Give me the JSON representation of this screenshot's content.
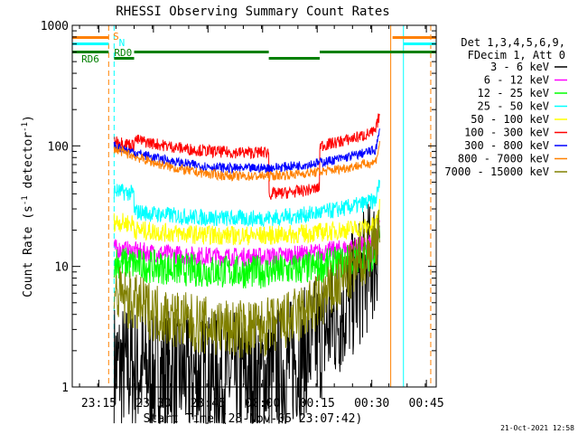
{
  "chart_data": {
    "type": "line",
    "title": "RHESSI Observing Summary Count Rates",
    "xlabel": "Start Time (28-Nov-05 23:07:42)",
    "ylabel_main": "Count Rate (s",
    "ylabel_sup": "-1",
    "ylabel_mid": " detector",
    "ylabel_end": ")",
    "y_scale": "log",
    "ylim": [
      1,
      1000
    ],
    "y_ticks": [
      {
        "value": 1,
        "label": "1"
      },
      {
        "value": 10,
        "label": "10"
      },
      {
        "value": 100,
        "label": "100"
      },
      {
        "value": 1000,
        "label": "1000"
      }
    ],
    "x_unit": "minutes from 23:07:42",
    "xlim": [
      0,
      100
    ],
    "x_ticks": [
      {
        "value": 7.3,
        "label": "23:15"
      },
      {
        "value": 22.3,
        "label": "23:30"
      },
      {
        "value": 37.3,
        "label": "23:45"
      },
      {
        "value": 52.3,
        "label": "00:00"
      },
      {
        "value": 67.3,
        "label": "00:15"
      },
      {
        "value": 82.3,
        "label": "00:30"
      },
      {
        "value": 97.3,
        "label": "00:45"
      }
    ],
    "legend_header": [
      "Det 1,3,4,5,6,9,",
      "FDecim 1, Att 0"
    ],
    "legend_position": "right",
    "series": [
      {
        "name": "3 - 6 keV",
        "color": "#000000",
        "start": 1.5,
        "mid": 1.2,
        "end": 15
      },
      {
        "name": "6 - 12 keV",
        "color": "#ff00ff",
        "start": 14,
        "mid": 12,
        "end": 16
      },
      {
        "name": "12 - 25 keV",
        "color": "#00ff00",
        "start": 11,
        "mid": 9,
        "end": 13
      },
      {
        "name": "25 - 50 keV",
        "color": "#00ffff",
        "start": 30,
        "mid": 25,
        "end": 36
      },
      {
        "name": "50 - 100 keV",
        "color": "#ffff00",
        "start": 21,
        "mid": 18,
        "end": 22
      },
      {
        "name": "100 - 300 keV",
        "color": "#ff0000",
        "start": 125,
        "mid": 88,
        "end": 135
      },
      {
        "name": "300 - 800 keV",
        "color": "#0000ff",
        "start": 100,
        "mid": 65,
        "end": 95
      },
      {
        "name": "800 - 7000 keV",
        "color": "#ff8000",
        "start": 95,
        "mid": 56,
        "end": 75
      },
      {
        "name": "7000 - 15000 keV",
        "color": "#808000",
        "start": 6,
        "mid": 3,
        "end": 18
      }
    ],
    "flags": [
      {
        "label": "S",
        "color": "#ff8000"
      },
      {
        "label": "N",
        "color": "#00ffff"
      },
      {
        "label": "RD0",
        "color": "#008000"
      },
      {
        "label": "RD6",
        "color": "#008000"
      }
    ],
    "vertical_markers": [
      {
        "x": 0.0,
        "color": "#00ffff",
        "style": "solid"
      },
      {
        "x": 10.0,
        "color": "#ff8000",
        "style": "dashed"
      },
      {
        "x": 11.5,
        "color": "#00ffff",
        "style": "dashed"
      },
      {
        "x": 87.5,
        "color": "#ff8000",
        "style": "solid"
      },
      {
        "x": 91.0,
        "color": "#00ffff",
        "style": "solid"
      },
      {
        "x": 98.5,
        "color": "#ff8000",
        "style": "dashed"
      }
    ],
    "data_start": 11.5,
    "data_end": 84.5
  },
  "footer": {
    "timestamp": "21-Oct-2021 12:58"
  }
}
